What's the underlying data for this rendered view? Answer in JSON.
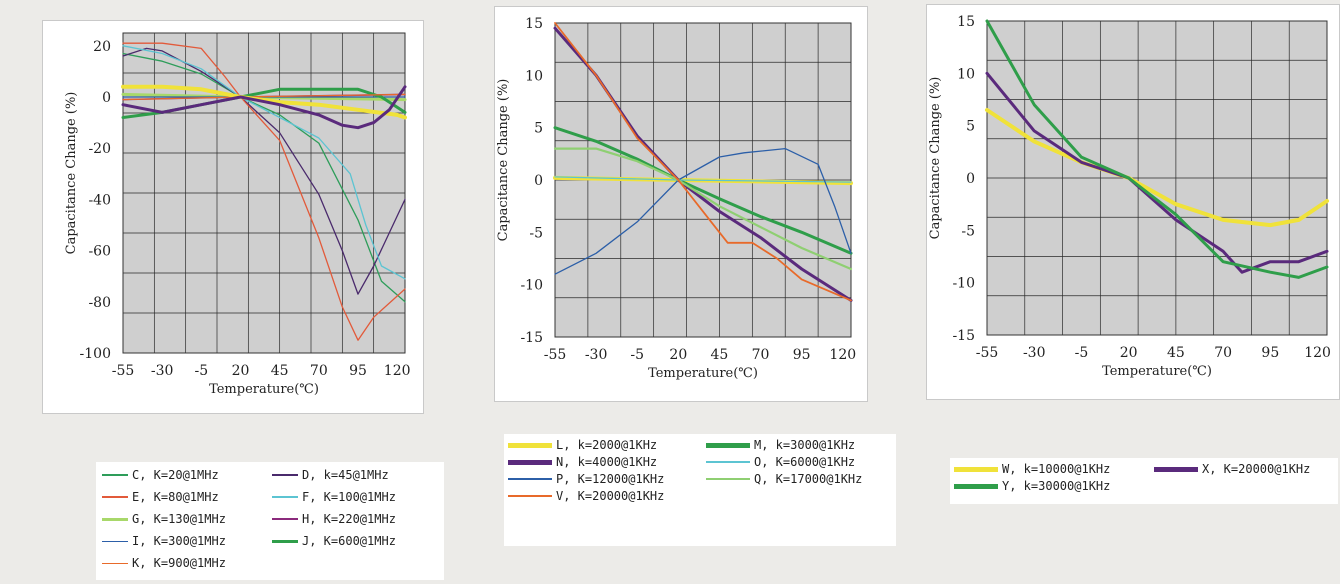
{
  "chart_data": [
    {
      "type": "line",
      "xlabel": "Temperature(℃)",
      "ylabel": "Capacitance Change (%)",
      "xlim": [
        -55,
        125
      ],
      "ylim": [
        -100,
        25
      ],
      "x_ticks": [
        -55,
        -30,
        -5,
        20,
        45,
        70,
        95,
        120
      ],
      "y_ticks": [
        20,
        0,
        -20,
        -40,
        -60,
        -80,
        -100
      ],
      "grid": true,
      "series": [
        {
          "name": "C, K=20@1MHz",
          "color": "#2e9d5a",
          "width": 1.3,
          "x": [
            -55,
            -30,
            -5,
            20,
            45,
            70,
            95,
            110,
            125
          ],
          "y": [
            17,
            14,
            9,
            0,
            -7,
            -18,
            -48,
            -72,
            -80
          ]
        },
        {
          "name": "D, k=45@1MHz",
          "color": "#4a2a6c",
          "width": 1.3,
          "x": [
            -55,
            -40,
            -30,
            -5,
            20,
            45,
            70,
            85,
            95,
            105,
            125
          ],
          "y": [
            16,
            19,
            18,
            10,
            0,
            -14,
            -38,
            -60,
            -77,
            -66,
            -40
          ]
        },
        {
          "name": "E, K=80@1MHz",
          "color": "#e25a3a",
          "width": 1.3,
          "x": [
            -55,
            -30,
            -5,
            10,
            20,
            45,
            70,
            85,
            95,
            105,
            125
          ],
          "y": [
            21,
            21,
            19,
            8,
            0,
            -17,
            -55,
            -82,
            -95,
            -86,
            -75
          ]
        },
        {
          "name": "F, K=100@1MHz",
          "color": "#5cc4d2",
          "width": 1.3,
          "x": [
            -55,
            -30,
            -5,
            20,
            45,
            70,
            90,
            100,
            110,
            125
          ],
          "y": [
            20,
            17,
            11,
            0,
            -8,
            -16,
            -30,
            -50,
            -66,
            -71
          ]
        },
        {
          "name": "G, K=130@1MHz",
          "color": "#a8d86a",
          "width": 3,
          "x": [
            -55,
            20,
            125
          ],
          "y": [
            1,
            0,
            -1
          ]
        },
        {
          "name": "H, K=220@1MHz",
          "color": "#8b2a7c",
          "width": 1.6,
          "x": [
            -55,
            20,
            125
          ],
          "y": [
            -1,
            0,
            1
          ]
        },
        {
          "name": "I, K=300@1MHz",
          "color": "#2c5fa8",
          "width": 1.3,
          "x": [
            -55,
            125
          ],
          "y": [
            0,
            0
          ]
        },
        {
          "name": "J, K=600@1MHz",
          "color": "#2f9e4a",
          "width": 3,
          "x": [
            -55,
            -30,
            -5,
            20,
            45,
            70,
            95,
            110,
            125
          ],
          "y": [
            -8,
            -6,
            -3,
            0,
            3,
            3,
            3,
            0,
            -6
          ]
        },
        {
          "name": "K, K=900@1MHz",
          "color": "#e86a2a",
          "width": 1.3,
          "x": [
            -55,
            20,
            125
          ],
          "y": [
            -1,
            0,
            1
          ]
        },
        {
          "name": "W, k=10000@1KHz",
          "color": "#f0e23a",
          "width": 4,
          "x": [
            -55,
            -30,
            -5,
            20,
            45,
            70,
            95,
            120,
            125
          ],
          "y": [
            4,
            4,
            3,
            0,
            -2,
            -3,
            -5,
            -7,
            -8
          ]
        },
        {
          "name": "X, K=20000@1KHz",
          "color": "#5a2a7c",
          "width": 3,
          "x": [
            -55,
            -30,
            -5,
            20,
            45,
            70,
            85,
            95,
            105,
            115,
            125
          ],
          "y": [
            -3,
            -6,
            -3,
            0,
            -3,
            -7,
            -11,
            -12,
            -10,
            -5,
            4
          ]
        }
      ]
    },
    {
      "type": "line",
      "xlabel": "Temperature(℃)",
      "ylabel": "Capacitance Change (%)",
      "xlim": [
        -55,
        125
      ],
      "ylim": [
        -15,
        15
      ],
      "x_ticks": [
        -55,
        -30,
        -5,
        20,
        45,
        70,
        95,
        120
      ],
      "y_ticks": [
        15,
        10,
        5,
        0,
        -5,
        -10,
        -15
      ],
      "grid": true,
      "series": [
        {
          "name": "L, k=2000@1KHz",
          "color": "#f0e23a",
          "width": 4,
          "x": [
            -55,
            20,
            125
          ],
          "y": [
            0.2,
            0,
            -0.3
          ]
        },
        {
          "name": "M, k=3000@1KHz",
          "color": "#2f9e4a",
          "width": 3,
          "x": [
            -55,
            -30,
            -5,
            20,
            45,
            70,
            95,
            125
          ],
          "y": [
            5,
            3.7,
            2,
            0,
            -1.8,
            -3.5,
            -5,
            -7
          ]
        },
        {
          "name": "N, k=4000@1KHz",
          "color": "#5a2a7c",
          "width": 3,
          "x": [
            -55,
            -30,
            -5,
            20,
            45,
            70,
            95,
            125
          ],
          "y": [
            14.5,
            10,
            4.2,
            0,
            -3,
            -5.5,
            -8.5,
            -11.5
          ]
        },
        {
          "name": "O, K=6000@1KHz",
          "color": "#5cc4d2",
          "width": 1.3,
          "x": [
            -55,
            20,
            125
          ],
          "y": [
            0.3,
            0,
            -0.2
          ]
        },
        {
          "name": "P, K=12000@1KHz",
          "color": "#2c5fa8",
          "width": 1.3,
          "x": [
            -55,
            -30,
            -5,
            20,
            45,
            60,
            85,
            105,
            115,
            125
          ],
          "y": [
            -9,
            -7,
            -4,
            0,
            2.2,
            2.6,
            3,
            1.5,
            -2.5,
            -7
          ]
        },
        {
          "name": "Q, K=17000@1KHz",
          "color": "#8fcf72",
          "width": 2.2,
          "x": [
            -55,
            -30,
            -5,
            20,
            45,
            70,
            95,
            125
          ],
          "y": [
            3,
            3,
            1.8,
            0,
            -2.5,
            -4.5,
            -6.5,
            -8.5
          ]
        },
        {
          "name": "V, K=20000@1KHz",
          "color": "#e86a2a",
          "width": 1.8,
          "x": [
            -55,
            -30,
            -5,
            20,
            40,
            50,
            65,
            80,
            95,
            110,
            125
          ],
          "y": [
            15,
            10,
            4,
            0,
            -4,
            -6,
            -6,
            -7.5,
            -9.5,
            -10.5,
            -11.5
          ]
        }
      ]
    },
    {
      "type": "line",
      "xlabel": "Temperature(℃)",
      "ylabel": "Capacitance Change (%)",
      "xlim": [
        -55,
        125
      ],
      "ylim": [
        -15,
        15
      ],
      "x_ticks": [
        -55,
        -30,
        -5,
        20,
        45,
        70,
        95,
        120
      ],
      "y_ticks": [
        15,
        10,
        5,
        0,
        -5,
        -10,
        -15
      ],
      "grid": true,
      "series": [
        {
          "name": "W, k=10000@1KHz",
          "color": "#f0e23a",
          "width": 4,
          "x": [
            -55,
            -30,
            -5,
            20,
            45,
            70,
            95,
            110,
            125
          ],
          "y": [
            6.5,
            3.5,
            1.5,
            0,
            -2.5,
            -4,
            -4.5,
            -4,
            -2.2
          ]
        },
        {
          "name": "X, K=20000@1KHz",
          "color": "#5a2a7c",
          "width": 3,
          "x": [
            -55,
            -30,
            -5,
            20,
            45,
            70,
            80,
            95,
            110,
            125
          ],
          "y": [
            10,
            4.5,
            1.5,
            0,
            -4,
            -7,
            -9,
            -8,
            -8,
            -7
          ]
        },
        {
          "name": "Y, k=30000@1KHz",
          "color": "#2f9e4a",
          "width": 3,
          "x": [
            -55,
            -30,
            -5,
            20,
            45,
            70,
            95,
            110,
            125
          ],
          "y": [
            15,
            7,
            2,
            0,
            -3.5,
            -8,
            -9,
            -9.5,
            -8.5
          ]
        }
      ]
    }
  ],
  "legends": [
    {
      "items": [
        {
          "label": "C, K=20@1MHz",
          "color": "#2e9d5a",
          "w": 1.5
        },
        {
          "label": "D, k=45@1MHz",
          "color": "#4a2a6c",
          "w": 1.5
        },
        {
          "label": "E, K=80@1MHz",
          "color": "#e25a3a",
          "w": 1.5
        },
        {
          "label": "F, K=100@1MHz",
          "color": "#5cc4d2",
          "w": 1.5
        },
        {
          "label": "G, K=130@1MHz",
          "color": "#a8d86a",
          "w": 3
        },
        {
          "label": "H, K=220@1MHz",
          "color": "#8b2a7c",
          "w": 2
        },
        {
          "label": "I, K=300@1MHz",
          "color": "#2c5fa8",
          "w": 1.5
        },
        {
          "label": "J, K=600@1MHz",
          "color": "#2f9e4a",
          "w": 3
        },
        {
          "label": "K, K=900@1MHz",
          "color": "#e86a2a",
          "w": 1.5
        }
      ]
    },
    {
      "items": [
        {
          "label": "L, k=2000@1KHz",
          "color": "#f0e23a",
          "w": 5
        },
        {
          "label": "M, k=3000@1KHz",
          "color": "#2f9e4a",
          "w": 5
        },
        {
          "label": "N, k=4000@1KHz",
          "color": "#5a2a7c",
          "w": 5
        },
        {
          "label": "O, K=6000@1KHz",
          "color": "#5cc4d2",
          "w": 1.5
        },
        {
          "label": "P, K=12000@1KHz",
          "color": "#2c5fa8",
          "w": 1.5
        },
        {
          "label": "Q, K=17000@1KHz",
          "color": "#8fcf72",
          "w": 2
        },
        {
          "label": "V, K=20000@1KHz",
          "color": "#e86a2a",
          "w": 1.5
        }
      ]
    },
    {
      "items": [
        {
          "label": "W, k=10000@1KHz",
          "color": "#f0e23a",
          "w": 5
        },
        {
          "label": "X, K=20000@1KHz",
          "color": "#5a2a7c",
          "w": 5
        },
        {
          "label": "Y, k=30000@1KHz",
          "color": "#2f9e4a",
          "w": 5
        }
      ]
    }
  ]
}
